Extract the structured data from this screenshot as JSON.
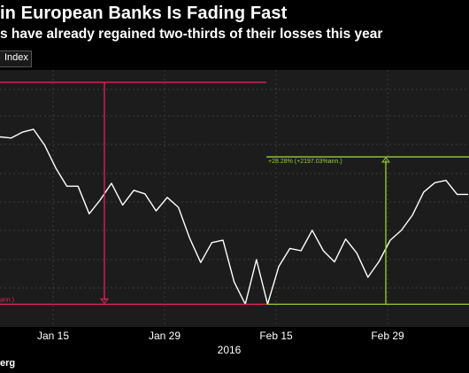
{
  "title": "in European Banks Is Fading Fast",
  "subtitle": "s have already regained two-thirds of their losses this year",
  "legend_label": "Index",
  "year_label": "2016",
  "source": "erg",
  "colors": {
    "background": "#000000",
    "plot_background": "#1c1c1c",
    "grid": "#3a3a3a",
    "line": "#ffffff",
    "loss_annotation": "#e0245e",
    "gain_annotation": "#9acd32"
  },
  "chart_data": {
    "type": "line",
    "x_ticks": [
      "Jan 15",
      "Jan 29",
      "Feb 15",
      "Feb 29"
    ],
    "series": [
      {
        "values": [
          138.6,
          138.4,
          139.4,
          139.9,
          137.2,
          133.3,
          130.2,
          130.2,
          125.5,
          127.9,
          130.7,
          127.0,
          129.5,
          128.9,
          126.0,
          128.3,
          126.6,
          121.4,
          117.2,
          120.6,
          121.0,
          113.9,
          110.1,
          117.7,
          110.1,
          116.5,
          119.6,
          119.2,
          122.7,
          119.2,
          117.3,
          121.2,
          118.8,
          114.7,
          117.4,
          121.0,
          122.7,
          125.3,
          129.2,
          130.8,
          131.2,
          128.8,
          128.8
        ]
      }
    ],
    "annotations": [
      {
        "type": "drop",
        "label": "ann.)",
        "y_top": 147.9,
        "y_bottom": 110.1
      },
      {
        "type": "rise",
        "label": "+28.28% (+2197.03%ann.)",
        "y_top": 135.2,
        "y_bottom": 110.1
      }
    ],
    "grid": true
  }
}
